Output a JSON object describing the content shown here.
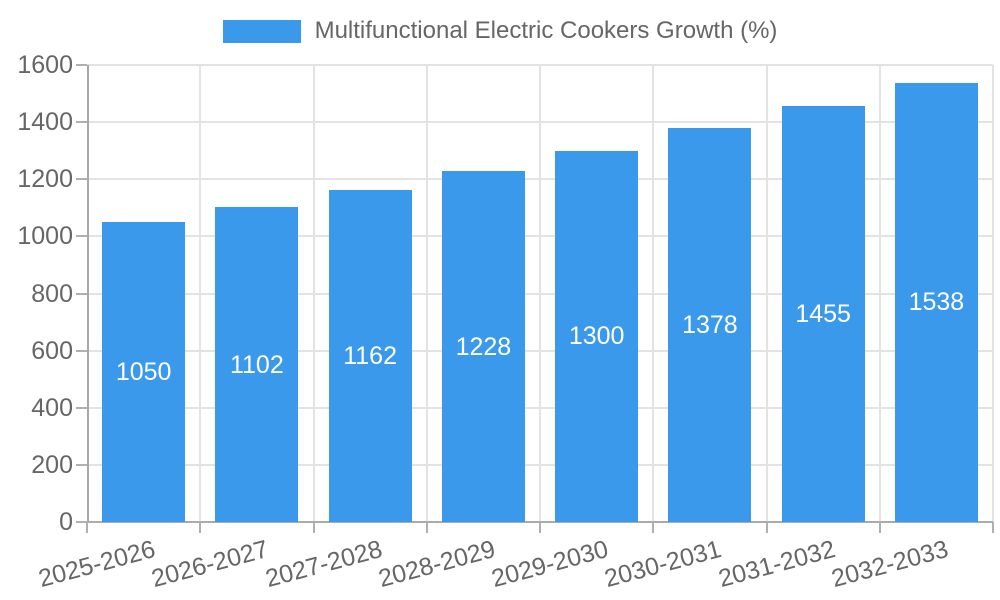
{
  "legend": {
    "label": "Multifunctional Electric Cookers Growth (%)",
    "swatch_color": "#3b99ec",
    "position": "top"
  },
  "chart_data": {
    "type": "bar",
    "title": "Multifunctional Electric Cookers Growth (%)",
    "series_name": "Multifunctional Electric Cookers Growth (%)",
    "categories": [
      "2025-2026",
      "2026-2027",
      "2027-2028",
      "2028-2029",
      "2029-2030",
      "2030-2031",
      "2031-2032",
      "2032-2033"
    ],
    "values": [
      1050,
      1102,
      1162,
      1228,
      1300,
      1378,
      1455,
      1538
    ],
    "value_labels": [
      "1050",
      "1102",
      "1162",
      "1228",
      "1300",
      "1378",
      "1455",
      "1538"
    ],
    "ytick_labels": [
      "0",
      "200",
      "400",
      "600",
      "800",
      "1000",
      "1200",
      "1400",
      "1600"
    ],
    "yticks": [
      0,
      200,
      400,
      600,
      800,
      1000,
      1200,
      1400,
      1600
    ],
    "ylim": [
      0,
      1600
    ],
    "xlabel": "",
    "ylabel": "",
    "grid": true,
    "legend_position": "top",
    "x_label_rotation_deg": -15,
    "colors": {
      "bar": "#3b99ec",
      "value_text": "#ffffff",
      "axis_text": "#666666",
      "grid_line": "#e3e3e3",
      "axis_line": "#aaaaaa",
      "background": "#ffffff"
    }
  }
}
